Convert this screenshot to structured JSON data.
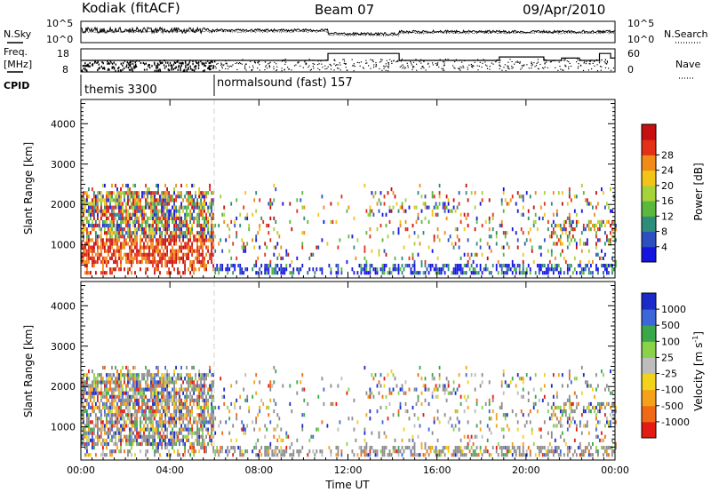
{
  "header": {
    "site": "Kodiak (fitACF)",
    "beam": "Beam 07",
    "date": "09/Apr/2010"
  },
  "labels": {
    "nsky": "N.Sky",
    "nsearch": "N.Search",
    "freq": "Freq.",
    "mhz": "[MHz]",
    "nave": "Nave",
    "cpid": "CPID"
  },
  "cpid_modes": [
    {
      "name": "themis 3300",
      "start_hour": 0
    },
    {
      "name": "normalsound (fast) 157",
      "start_hour": 6
    }
  ],
  "chart_data": [
    {
      "type": "line",
      "name": "noise",
      "left_ticks": [
        "10^5",
        "10^0"
      ],
      "right_ticks": [
        "10^5",
        "10^0"
      ],
      "left_series": "N.Sky",
      "right_series": "N.Search"
    },
    {
      "type": "line",
      "name": "freq-nave",
      "left_ticks": [
        "18",
        "8"
      ],
      "right_ticks": [
        "60",
        "0"
      ],
      "left_range": [
        8,
        18
      ],
      "right_range": [
        0,
        60
      ],
      "step_freq_mhz": [
        {
          "from": 0,
          "to": 6,
          "value": 13
        },
        {
          "from": 6,
          "to": 11.1,
          "value": 13
        },
        {
          "from": 11.1,
          "to": 14.3,
          "value": 16
        },
        {
          "from": 14.3,
          "to": 18.8,
          "value": 13
        },
        {
          "from": 18.8,
          "to": 20.8,
          "value": 14.5
        },
        {
          "from": 20.8,
          "to": 21.6,
          "value": 13
        },
        {
          "from": 21.6,
          "to": 22.4,
          "value": 14
        },
        {
          "from": 22.4,
          "to": 23.3,
          "value": 13
        },
        {
          "from": 23.3,
          "to": 23.8,
          "value": 16
        },
        {
          "from": 23.8,
          "to": 24,
          "value": 14
        }
      ]
    },
    {
      "type": "heatmap",
      "name": "power",
      "ylabel": "Slant Range [km]",
      "ylim": [
        180,
        4600
      ],
      "yticks": [
        1000,
        2000,
        3000,
        4000
      ],
      "colorbar_label": "Power [dB]",
      "colorbar_ticks": [
        "4",
        "8",
        "12",
        "16",
        "20",
        "24",
        "28"
      ],
      "colorbar_colors": [
        "#1515e0",
        "#2d4fc0",
        "#2e8c7a",
        "#5ab83c",
        "#a6d23a",
        "#f2c418",
        "#f08a18",
        "#e33016",
        "#c70f0f"
      ]
    },
    {
      "type": "heatmap",
      "name": "velocity",
      "ylabel": "Slant Range [km]",
      "xlabel": "Time UT",
      "ylim": [
        180,
        4600
      ],
      "yticks": [
        1000,
        2000,
        3000,
        4000
      ],
      "xticks": [
        "00:00",
        "04:00",
        "08:00",
        "12:00",
        "16:00",
        "20:00",
        "00:00"
      ],
      "x_hours": [
        0,
        4,
        8,
        12,
        16,
        20,
        24
      ],
      "colorbar_label": "Velocity [m s",
      "colorbar_label_sup": "-1",
      "colorbar_label_tail": "]",
      "colorbar_ticks": [
        "1000",
        "500",
        "100",
        "25",
        "-25",
        "-100",
        "-500",
        "-1000"
      ],
      "colorbar_colors": [
        "#1a2bc8",
        "#3d66d8",
        "#3aa84a",
        "#8ad24a",
        "#bdbdbd",
        "#f2d21a",
        "#f5a21a",
        "#f06a15",
        "#e21c12"
      ]
    }
  ],
  "colors": {
    "ground_scatter": "#8c8c8c",
    "mode_line": "#d0d0d0"
  }
}
